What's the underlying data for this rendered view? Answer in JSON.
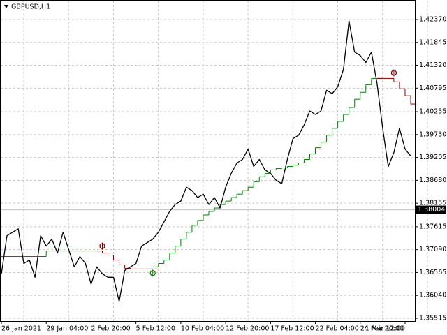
{
  "chart_data": {
    "type": "line",
    "title": "GBPUSD,H1",
    "categories": [
      "26 Jan 2021",
      null,
      null,
      null,
      null,
      null,
      null,
      null,
      "29 Jan 04:00",
      null,
      null,
      null,
      null,
      null,
      null,
      null,
      "2 Feb 20:00",
      null,
      null,
      null,
      null,
      null,
      null,
      null,
      "5 Feb 12:00",
      null,
      null,
      null,
      null,
      null,
      null,
      null,
      "10 Feb 04:00",
      null,
      null,
      null,
      null,
      null,
      null,
      null,
      "12 Feb 20:00",
      null,
      null,
      null,
      null,
      null,
      null,
      null,
      "17 Feb 12:00",
      null,
      null,
      null,
      null,
      null,
      null,
      null,
      "22 Feb 04:00",
      null,
      null,
      null,
      null,
      null,
      null,
      null,
      "24 Feb 20:00",
      null,
      null,
      null,
      null,
      null,
      null,
      null,
      "1 Mar 12:00",
      null
    ],
    "values": [
      1.36535,
      1.37409,
      1.37489,
      1.37568,
      1.36773,
      1.36853,
      1.36455,
      1.37409,
      1.37171,
      1.3733,
      1.37012,
      1.37489,
      1.37091,
      1.36694,
      1.36932,
      1.36773,
      1.36296,
      1.36694,
      1.36535,
      1.36455,
      1.36455,
      1.35899,
      1.36614,
      1.36694,
      1.36773,
      1.37171,
      1.3725,
      1.3733,
      1.37489,
      1.37727,
      1.37966,
      1.38125,
      1.38204,
      1.38522,
      1.38443,
      1.38284,
      1.38363,
      1.38125,
      1.38284,
      1.38045,
      1.38522,
      1.3884,
      1.39079,
      1.39158,
      1.39397,
      1.38999,
      1.39158,
      1.3892,
      1.3884,
      1.38681,
      1.38602,
      1.39158,
      1.39635,
      1.39715,
      1.39953,
      1.40271,
      1.40192,
      1.40271,
      1.40748,
      1.40669,
      1.40828,
      1.41225,
      1.42338,
      1.41623,
      1.41543,
      1.41384,
      1.41623,
      1.40907,
      1.39874,
      1.38999,
      1.39317,
      1.39874,
      1.39397,
      1.39238
    ],
    "color": "#000000",
    "series": [
      {
        "color": "#008000",
        "values": [
          1.36932,
          1.36932,
          1.36932,
          1.36932,
          1.36932,
          1.36932,
          1.36932,
          1.36932,
          1.37059,
          1.37059,
          1.37059,
          1.37059,
          1.37059,
          1.37059,
          1.37059,
          1.37059,
          1.37059,
          1.37059,
          null,
          null,
          null,
          null,
          null,
          null,
          null,
          null,
          null,
          1.36694,
          1.36773,
          1.36853,
          1.37012,
          1.37171,
          1.3733,
          1.37489,
          1.37648,
          1.37759,
          1.37886,
          1.37966,
          1.38045,
          1.38125,
          1.38204,
          1.38284,
          1.38363,
          1.38443,
          1.38522,
          1.38649,
          1.38761,
          1.3884,
          1.3892,
          1.38951,
          1.38967,
          1.38999,
          1.39031,
          1.39079,
          1.39158,
          1.39285,
          1.39428,
          1.39556,
          1.39715,
          1.39874,
          1.40033,
          1.40192,
          1.40351,
          1.40541,
          1.407,
          1.40875,
          1.41018,
          1.41018,
          null,
          null,
          null,
          null,
          null,
          null
        ]
      },
      {
        "color": "#8b0000",
        "values": [
          null,
          null,
          null,
          null,
          null,
          null,
          null,
          null,
          null,
          null,
          null,
          null,
          null,
          null,
          null,
          null,
          null,
          1.37059,
          1.37012,
          1.36964,
          1.36853,
          1.36741,
          1.36662,
          1.36646,
          1.36646,
          1.36646,
          1.36646,
          1.36646,
          null,
          null,
          null,
          null,
          null,
          null,
          null,
          null,
          null,
          null,
          null,
          null,
          null,
          null,
          null,
          null,
          null,
          null,
          null,
          null,
          null,
          null,
          null,
          null,
          null,
          null,
          null,
          null,
          null,
          null,
          null,
          null,
          null,
          null,
          null,
          null,
          null,
          null,
          null,
          1.41018,
          1.41018,
          1.41018,
          1.40939,
          1.4078,
          1.40621,
          1.4043
        ]
      }
    ],
    "markers": [
      {
        "x": 18,
        "value": 1.37171,
        "color": "#8b0000"
      },
      {
        "x": 27,
        "value": 1.36551,
        "color": "#008000"
      },
      {
        "x": 70,
        "value": 1.41146,
        "color": "#8b0000"
      }
    ],
    "last_price": 1.38004,
    "ylim": [
      1.35451,
      1.42818
    ],
    "yticks": [
      {
        "value": 1.4237,
        "label": "1.42370"
      },
      1.41845,
      {
        "value": 1.4132,
        "label": "1.41320"
      },
      1.40795,
      1.40255,
      {
        "value": 1.3973,
        "label": "1.39730"
      },
      1.39205,
      {
        "value": 1.3868,
        "label": "1.38680"
      },
      1.38155,
      1.37615,
      {
        "value": 1.3709,
        "label": "1.37090"
      },
      1.36565,
      {
        "value": 1.3604,
        "label": "1.36040"
      },
      1.35515
    ],
    "grid": true
  }
}
